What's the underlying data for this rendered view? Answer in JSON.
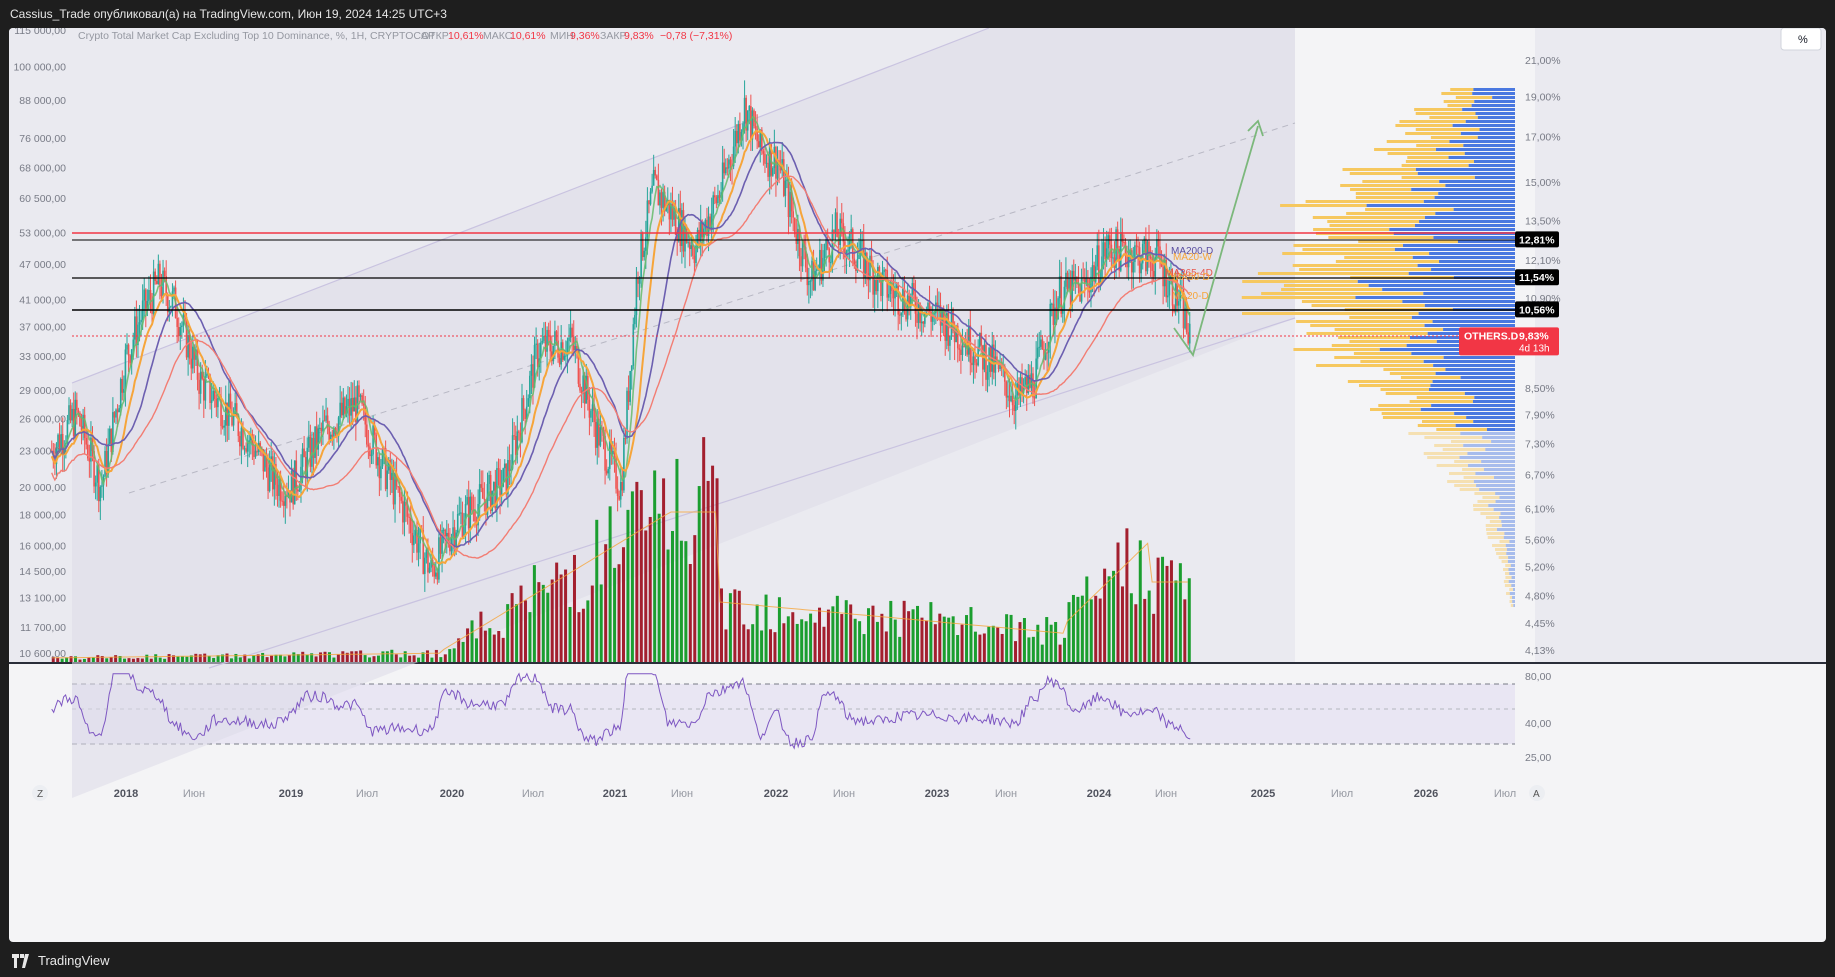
{
  "header": {
    "published": "Cassius_Trade опубликовал(а) на TradingView.com, Июн 19, 2024 14:25 UTC+3"
  },
  "legend": {
    "title": "Crypto Total Market Cap Excluding Top 10 Dominance, %, 1H, CRYPTOCAP",
    "open_label": "ОТКР",
    "open_value": "10,61%",
    "high_label": "МАКС",
    "high_value": "10,61%",
    "low_label": "МИН",
    "low_value": "9,36%",
    "close_label": "ЗАКР",
    "close_value": "9,83%",
    "change": "−0,78 (−7,31%)"
  },
  "chart_data": {
    "type": "line",
    "left_axis_ticks": [
      "115 000,00",
      "100 000,00",
      "88 000,00",
      "76 000,00",
      "68 000,00",
      "60 500,00",
      "53 000,00",
      "47 000,00",
      "41 000,00",
      "37 000,00",
      "33 000,00",
      "29 000,00",
      "26 000,00",
      "23 000,00",
      "20 000,00",
      "18 000,00",
      "16 000,00",
      "14 500,00",
      "13 100,00",
      "11 700,00",
      "10 600,00"
    ],
    "right_axis_ticks": [
      "21,00%",
      "19,00%",
      "17,00%",
      "15,00%",
      "13,50%",
      "12,10%",
      "10,90%",
      "9,83%",
      "8,50%",
      "7,90%",
      "7,30%",
      "6,70%",
      "6,10%",
      "5,60%",
      "5,20%",
      "4,80%",
      "4,45%",
      "4,13%"
    ],
    "rsi_axis_ticks": [
      "80,00",
      "40,00",
      "25,00"
    ],
    "x_labels": [
      "2018",
      "Июн",
      "2019",
      "Июл",
      "2020",
      "Июл",
      "2021",
      "Июн",
      "2022",
      "Июн",
      "2023",
      "Июн",
      "2024",
      "Июн",
      "2025",
      "Июл",
      "2026",
      "Июл"
    ],
    "level_badges": [
      {
        "label": "12,81%",
        "value": 12.81,
        "color": "#000000"
      },
      {
        "label": "11,54%",
        "value": 11.54,
        "color": "#000000"
      },
      {
        "label": "10,56%",
        "value": 10.56,
        "color": "#000000"
      }
    ],
    "current": {
      "symbol": "OTHERS.D",
      "value": "9,83%",
      "countdown": "4d 13h",
      "color": "#f23645"
    },
    "ma_labels": [
      "MA200-D",
      "MA20-W",
      "MA365-4D",
      "MA50-D",
      "MA20-D"
    ],
    "percent_button": "%",
    "series": [
      {
        "name": "price_close",
        "color": "#26a69a",
        "x": [
          2017.55,
          2017.7,
          2017.85,
          2018.0,
          2018.1,
          2018.2,
          2018.3,
          2018.45,
          2018.6,
          2018.75,
          2018.9,
          2019.0,
          2019.2,
          2019.4,
          2019.55,
          2019.7,
          2019.85,
          2020.0,
          2020.2,
          2020.3,
          2020.5,
          2020.7,
          2020.85,
          2021.0,
          2021.1,
          2021.2,
          2021.35,
          2021.45,
          2021.6,
          2021.75,
          2021.85,
          2021.95,
          2022.05,
          2022.15,
          2022.3,
          2022.4,
          2022.6,
          2022.8,
          2022.95,
          2023.1,
          2023.25,
          2023.4,
          2023.5,
          2023.65,
          2023.8,
          2023.95,
          2024.1,
          2024.25,
          2024.4,
          2024.45
        ],
        "y": [
          23000,
          26500,
          20000,
          33000,
          39000,
          44000,
          40000,
          30000,
          27000,
          24000,
          20500,
          20000,
          25000,
          27500,
          22000,
          18000,
          14500,
          17500,
          19500,
          20500,
          34000,
          35000,
          25000,
          20000,
          46000,
          63000,
          55000,
          50000,
          62000,
          86000,
          72000,
          70000,
          55000,
          44000,
          53000,
          50000,
          43000,
          40000,
          38000,
          35000,
          32000,
          28000,
          30000,
          42000,
          43000,
          50000,
          49000,
          48000,
          40000,
          34500
        ]
      }
    ]
  }
}
